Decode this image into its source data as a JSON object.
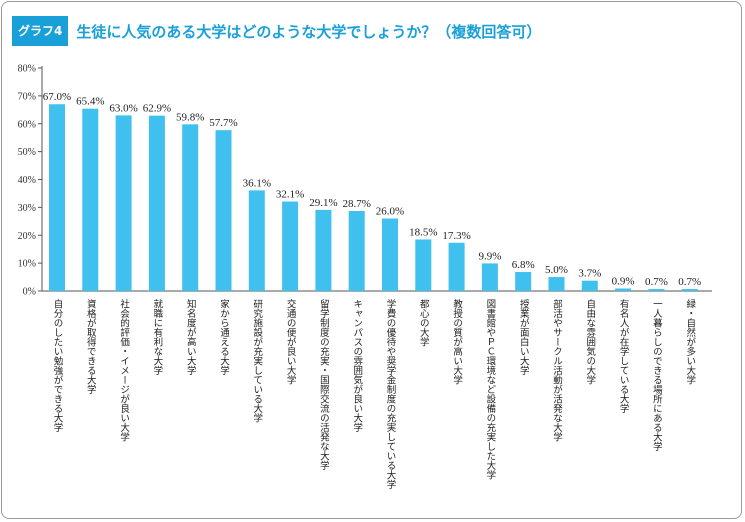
{
  "header": {
    "badge": "グラフ4",
    "title": "生徒に人気のある大学はどのような大学でしょうか？（複数回答可）"
  },
  "colors": {
    "accent": "#1aa0d8",
    "bar": "#3fc0ee"
  },
  "chart_data": {
    "type": "bar",
    "title": "生徒に人気のある大学はどのような大学でしょうか？（複数回答可）",
    "ylim": [
      0,
      80
    ],
    "yticks": [
      0,
      10,
      20,
      30,
      40,
      50,
      60,
      70,
      80
    ],
    "ytick_labels": [
      "0%",
      "10%",
      "20%",
      "30%",
      "40%",
      "50%",
      "60%",
      "70%",
      "80%"
    ],
    "grid": false,
    "categories": [
      "自分のしたい勉強ができる大学",
      "資格が取得できる大学",
      "社会的評価・イメージが良い大学",
      "就職に有利な大学",
      "知名度が高い大学",
      "家から通える大学",
      "研究施設が充実している大学",
      "交通の便が良い大学",
      "留学制度の充実・国際交流の活発な大学",
      "キャンパスの雰囲気が良い大学",
      "学費の優待や奨学金制度の充実している大学",
      "都心の大学",
      "教授の質が高い大学",
      "図書館やＰＣ環境など設備の充実した大学",
      "授業が面白い大学",
      "部活やサークル活動が活発な大学",
      "自由な雰囲気の大学",
      "有名人が在学している大学",
      "一人暮らしのできる場所にある大学",
      "緑・自然が多い大学"
    ],
    "values": [
      67.0,
      65.4,
      63.0,
      62.9,
      59.8,
      57.7,
      36.1,
      32.1,
      29.1,
      28.7,
      26.0,
      18.5,
      17.3,
      9.9,
      6.8,
      5.0,
      3.7,
      0.9,
      0.7,
      0.7
    ],
    "value_labels": [
      "67.0%",
      "65.4%",
      "63.0%",
      "62.9%",
      "59.8%",
      "57.7%",
      "36.1%",
      "32.1%",
      "29.1%",
      "28.7%",
      "26.0%",
      "18.5%",
      "17.3%",
      "9.9%",
      "6.8%",
      "5.0%",
      "3.7%",
      "0.9%",
      "0.7%",
      "0.7%"
    ]
  }
}
